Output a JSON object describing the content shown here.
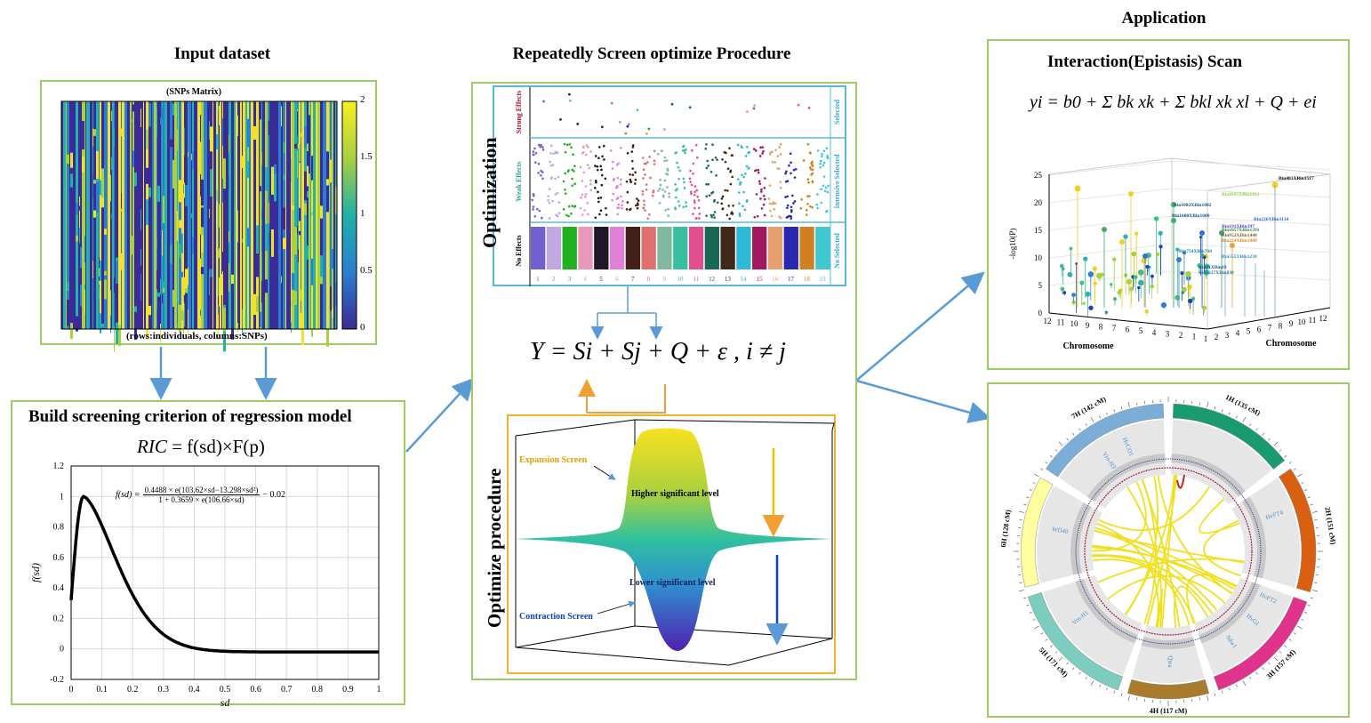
{
  "top_left": {
    "title": "Input dataset",
    "matrix_title": "(SNPs Matrix)",
    "matrix_caption": "(rows:individuals, columns:SNPs)",
    "colorbar_ticks": [
      "2",
      "1.5",
      "1",
      "0.5",
      "0"
    ]
  },
  "bottom_left": {
    "title": "Build screening criterion of regression model",
    "formula_lhs": "RIC",
    "formula_rhs": "= f(sd)×F(p)",
    "curve_formula_left": "f(sd) =",
    "curve_formula_num": "0.4488 × e(103.62×sd−13.298×sd²)",
    "curve_formula_den": "1 + 0.3659 × e(106.66×sd)",
    "curve_formula_right": "− 0.02",
    "xlabel": "sd",
    "ylabel": "f(sd)",
    "xticks": [
      "0",
      "0.1",
      "0.2",
      "0.3",
      "0.4",
      "0.5",
      "0.6",
      "0.7",
      "0.8",
      "0.9",
      "1"
    ],
    "yticks": [
      "1.2",
      "1",
      "0.8",
      "0.6",
      "0.4",
      "0.2",
      "0",
      "-0.2"
    ]
  },
  "middle": {
    "title": "Repeatedly Screen optimize Procedure",
    "optimization_label": "Optimization",
    "row_labels": [
      "Strong Effects",
      "Weak Effects",
      "No Effects"
    ],
    "right_labels": [
      "Selected",
      "Intensive Selected",
      "No Selected"
    ],
    "chrom_numbers": [
      "1",
      "2",
      "3",
      "4",
      "5",
      "6",
      "7",
      "8",
      "9",
      "10",
      "11",
      "12",
      "13",
      "14",
      "15",
      "16",
      "17",
      "18",
      "19"
    ],
    "model_equation": "Y = Si + Sj + Q + ε , i ≠ j",
    "optimize_label": "Optimize procedure",
    "expansion_label": "Expansion Screen",
    "higher_label": "Higher significant level",
    "lower_label": "Lower significant level",
    "contraction_label": "Contraction Screen"
  },
  "right": {
    "title": "Application",
    "scan_title": "Interaction(Epistasis) Scan",
    "scan_equation": "yi = b0 + Σ bk xk + Σ bkl xk xl + Q + ei",
    "ylabel": "-log10(P)",
    "xlabel_left": "Chromosome",
    "xlabel_right": "Chromosome",
    "zticks": [
      "25",
      "20",
      "15",
      "10",
      "5",
      "0"
    ],
    "chrom_ticks_left": [
      "12",
      "11",
      "10",
      "9",
      "8",
      "7",
      "6",
      "5",
      "4",
      "3",
      "2",
      "1"
    ],
    "chrom_ticks_right": [
      "1",
      "2",
      "3",
      "4",
      "5",
      "6",
      "7",
      "8",
      "9",
      "10",
      "11",
      "12"
    ],
    "annotations": [
      "Bin481XBin1517",
      "Bin1082XBin1082",
      "Bin1095XBin1412",
      "Bin1600XBin1600",
      "Bin226XBin1134",
      "Bin191XBin397",
      "Bin1057XBin1391",
      "Bin952XBin1440",
      "Bin224XBin1049",
      "Bin754XBin760",
      "Bin555XBin1230",
      "Bin21XBin18",
      "Bin1217XBin830"
    ],
    "circos_chromosomes": [
      "1H (135 cM)",
      "2H (151 cM)",
      "3H (157 cM)",
      "4H (117 cM)",
      "5H (171 cM)",
      "6H (128 cM)",
      "7H (142 cM)"
    ],
    "circos_genes": [
      "HvCO1",
      "Vrn-H3",
      "HvFT4",
      "HvFT2",
      "HvGI",
      "Sdw1",
      "Qtea",
      "Vrn-H1",
      "WD40"
    ]
  },
  "colors": {
    "box_border": "#9ccc65",
    "arrow": "#5b9bd5",
    "orange": "#f0a030",
    "chr1H": "#1a9a70",
    "chr2H": "#d86010",
    "chr3H": "#e0348c",
    "chr4H": "#a87c2c",
    "chr5H": "#7ccdc0",
    "chr6H": "#ffffa0",
    "chr7H": "#7badd6"
  }
}
